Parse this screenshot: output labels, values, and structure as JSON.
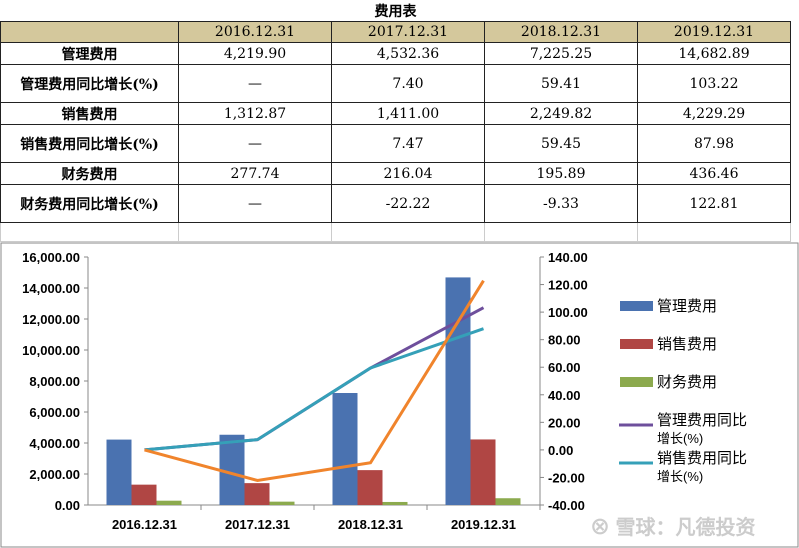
{
  "table": {
    "title": "费用表",
    "columns": [
      "2016.12.31",
      "2017.12.31",
      "2018.12.31",
      "2019.12.31"
    ],
    "rows": [
      {
        "label": "管理费用",
        "values": [
          "4,219.90",
          "4,532.36",
          "7,225.25",
          "14,682.89"
        ]
      },
      {
        "label": "管理费用同比增长(%)",
        "values": [
          "—",
          "7.40",
          "59.41",
          "103.22"
        ]
      },
      {
        "label": "销售费用",
        "values": [
          "1,312.87",
          "1,411.00",
          "2,249.82",
          "4,229.29"
        ]
      },
      {
        "label": "销售费用同比增长(%)",
        "values": [
          "—",
          "7.47",
          "59.45",
          "87.98"
        ]
      },
      {
        "label": "财务费用",
        "values": [
          "277.74",
          "216.04",
          "195.89",
          "436.46"
        ]
      },
      {
        "label": "财务费用同比增长(%)",
        "values": [
          "—",
          "-22.22",
          "-9.33",
          "122.81"
        ]
      }
    ]
  },
  "chart_data": {
    "type": "bar+line",
    "categories": [
      "2016.12.31",
      "2017.12.31",
      "2018.12.31",
      "2019.12.31"
    ],
    "y_left": {
      "range": [
        0,
        16000
      ],
      "ticks": [
        "0.00",
        "2,000.00",
        "4,000.00",
        "6,000.00",
        "8,000.00",
        "10,000.00",
        "12,000.00",
        "14,000.00",
        "16,000.00"
      ]
    },
    "y_right": {
      "range": [
        -40,
        140
      ],
      "ticks": [
        "-40.00",
        "-20.00",
        "0.00",
        "20.00",
        "40.00",
        "60.00",
        "80.00",
        "100.00",
        "120.00",
        "140.00"
      ]
    },
    "bars": [
      {
        "name": "管理费用",
        "color": "#4a72b0",
        "values": [
          4219.9,
          4532.36,
          7225.25,
          14682.89
        ]
      },
      {
        "name": "销售费用",
        "color": "#b04644",
        "values": [
          1312.87,
          1411.0,
          2249.82,
          4229.29
        ]
      },
      {
        "name": "财务费用",
        "color": "#8caa4e",
        "values": [
          277.74,
          216.04,
          195.89,
          436.46
        ]
      }
    ],
    "lines": [
      {
        "name": "管理费用同比增长(%)",
        "color": "#6e4f9c",
        "values": [
          0,
          7.4,
          59.41,
          103.22
        ]
      },
      {
        "name": "销售费用同比增长(%)",
        "color": "#35a0b8",
        "values": [
          0,
          7.47,
          59.45,
          87.98
        ]
      },
      {
        "color": "#f0842c",
        "values": [
          0,
          -22.22,
          -9.33,
          122.81
        ]
      }
    ],
    "legend": "right"
  },
  "watermark": "雪球：凡德投资"
}
